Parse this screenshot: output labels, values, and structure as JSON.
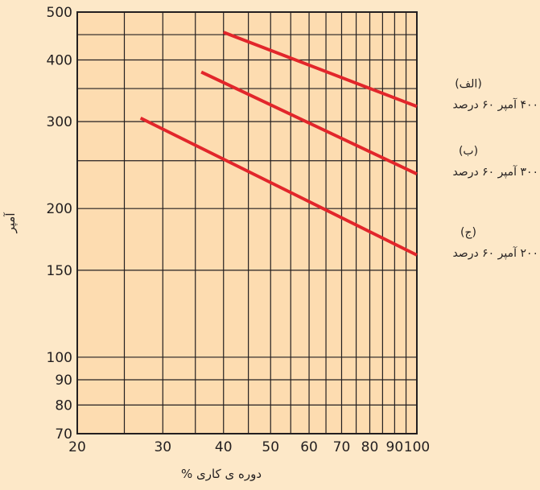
{
  "chart_data": {
    "type": "line",
    "title": "",
    "xlabel": "دوره ی کاری %",
    "ylabel": "آمپر",
    "x_scale": "log",
    "y_scale": "log",
    "xlim": [
      20,
      100
    ],
    "ylim": [
      70,
      500
    ],
    "grid": true,
    "x_ticks": [
      20,
      30,
      40,
      50,
      60,
      70,
      80,
      90,
      100
    ],
    "x_tick_labels": [
      "20",
      "30",
      "40",
      "50",
      "60",
      "70",
      "80",
      "90",
      "100"
    ],
    "y_ticks": [
      70,
      80,
      90,
      100,
      150,
      200,
      300,
      400,
      500
    ],
    "y_tick_labels": [
      "70",
      "80",
      "90",
      "100",
      "150",
      "200",
      "300",
      "400",
      "500"
    ],
    "x_minor_grid": [
      25,
      35,
      45,
      55,
      65,
      75,
      85,
      95
    ],
    "y_minor_grid": [
      250,
      350,
      450
    ],
    "series": [
      {
        "name": "۴۰۰ آمپر ۶۰ درصد",
        "tag": "(الف)",
        "x": [
          40,
          100
        ],
        "y": [
          455,
          322
        ]
      },
      {
        "name": "۳۰۰ آمپر ۶۰ درصد",
        "tag": "(ب)",
        "x": [
          36,
          100
        ],
        "y": [
          378,
          235
        ]
      },
      {
        "name": "۲۰۰ آمپر ۶۰ درصد",
        "tag": "(ج)",
        "x": [
          27,
          100
        ],
        "y": [
          305,
          161
        ]
      }
    ],
    "colors": {
      "background": "#fde8c8",
      "plot_background": "#fddcb0",
      "grid": "#231f20",
      "series": "#e2262b"
    }
  }
}
